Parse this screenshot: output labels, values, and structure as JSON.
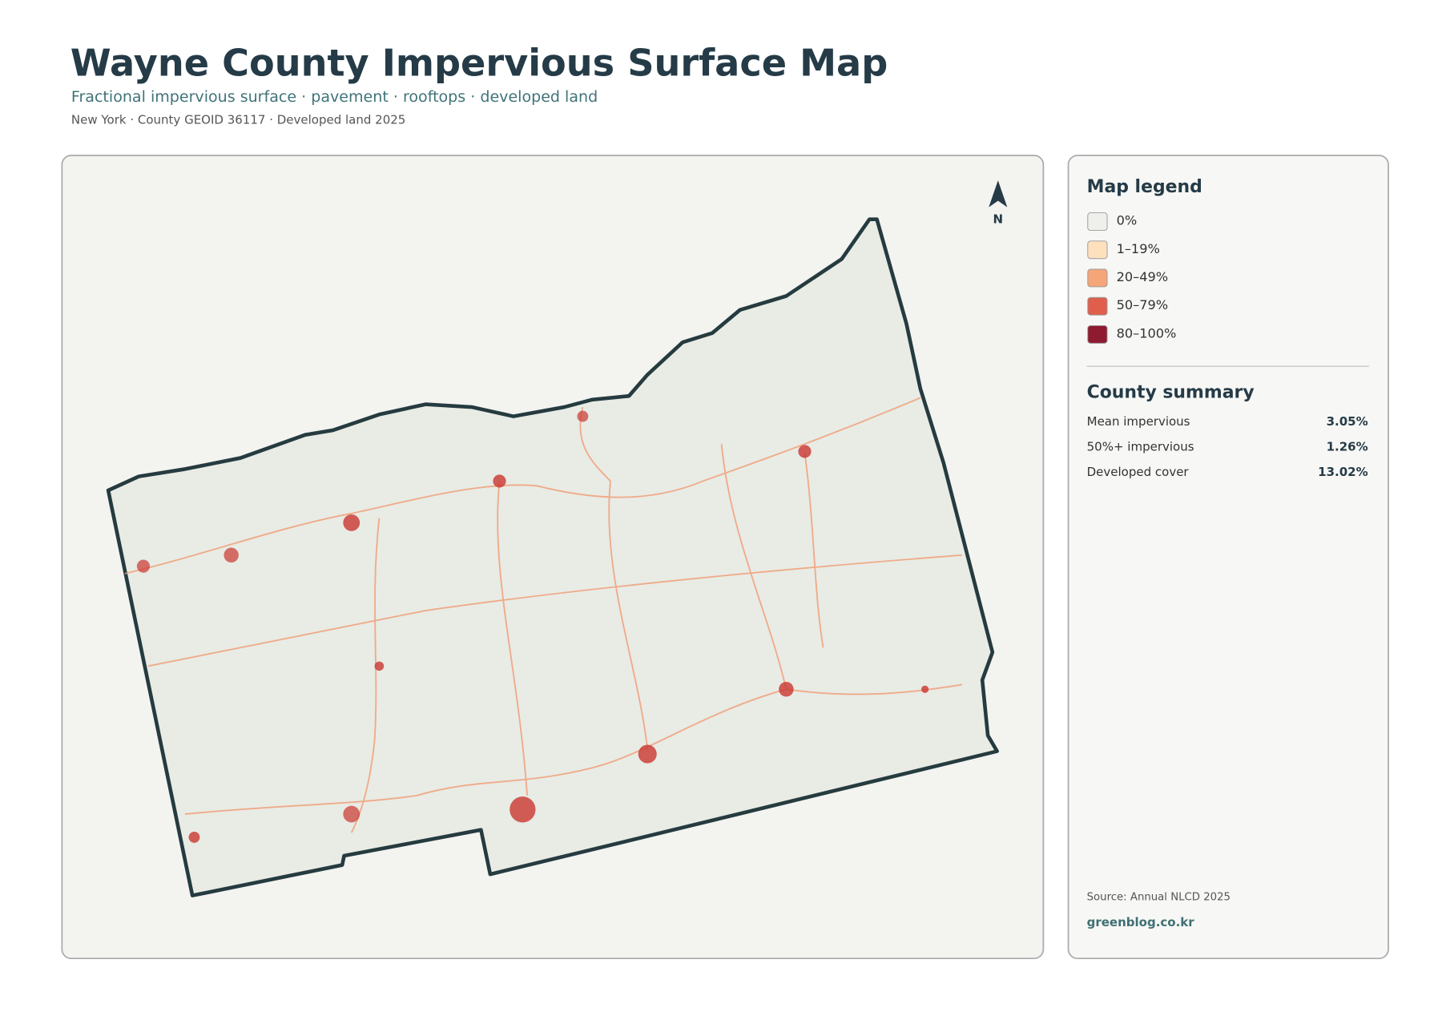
{
  "header": {
    "title": "Wayne County Impervious Surface Map",
    "subtitle": "Fractional impervious surface · pavement · rooftops · developed land",
    "meta": "New York · County GEOID 36117 · Developed land 2025"
  },
  "north": "N",
  "legend": {
    "title": "Map legend",
    "items": [
      {
        "label": "0%",
        "color": "#efefeb"
      },
      {
        "label": "1–19%",
        "color": "#fde0bd"
      },
      {
        "label": "20–49%",
        "color": "#f4a679"
      },
      {
        "label": "50–79%",
        "color": "#df5f4c"
      },
      {
        "label": "80–100%",
        "color": "#8e1b30"
      }
    ]
  },
  "summary": {
    "title": "County summary",
    "rows": [
      {
        "label": "Mean impervious",
        "value": "3.05%"
      },
      {
        "label": "50%+ impervious",
        "value": "1.26%"
      },
      {
        "label": "Developed cover",
        "value": "13.02%"
      }
    ]
  },
  "source": "Source: Annual NLCD 2025",
  "credit": "greenblog.co.kr"
}
